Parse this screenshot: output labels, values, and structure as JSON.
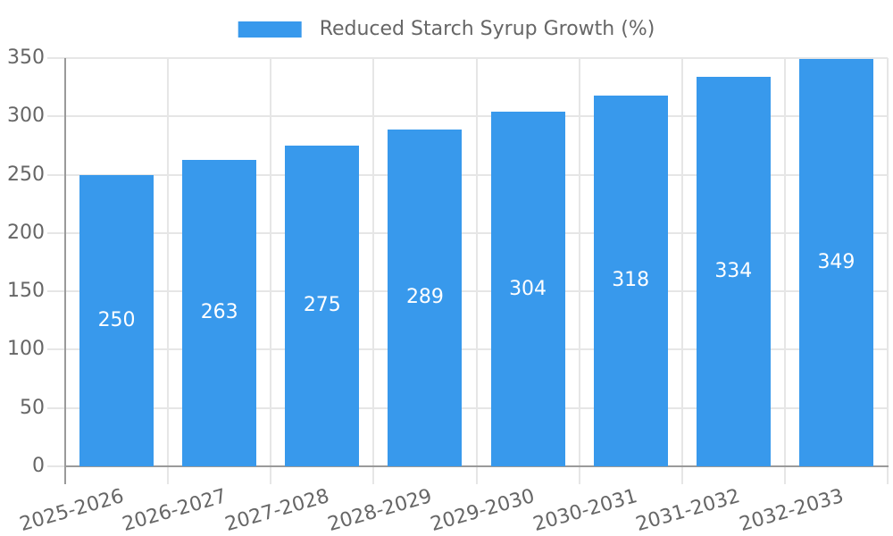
{
  "chart_data": {
    "type": "bar",
    "title": "",
    "legend_label": "Reduced Starch Syrup Growth (%)",
    "legend_position": "top",
    "categories": [
      "2025-2026",
      "2026-2027",
      "2027-2028",
      "2028-2029",
      "2029-2030",
      "2030-2031",
      "2031-2032",
      "2032-2033"
    ],
    "values": [
      250,
      263,
      275,
      289,
      304,
      318,
      334,
      349
    ],
    "xlabel": "",
    "ylabel": "",
    "ylim": [
      0,
      350
    ],
    "yticks": [
      0,
      50,
      100,
      150,
      200,
      250,
      300,
      350
    ],
    "grid": true,
    "colors": {
      "bar": "#3899ec",
      "bar_label": "#ffffff",
      "axis_text": "#666666",
      "grid_line": "#e6e6e6",
      "axis_line": "#9a9a9a",
      "background": "#ffffff"
    }
  }
}
